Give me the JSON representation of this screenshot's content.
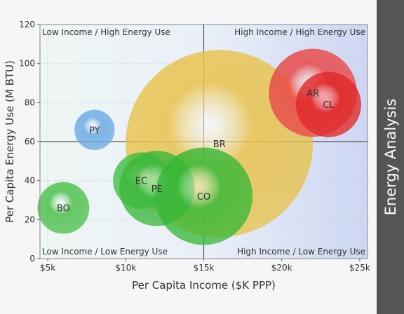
{
  "sidebar": {
    "title": "Energy Analysis"
  },
  "chart_data": {
    "type": "bubble",
    "xlabel": "Per Capita Income ($K PPP)",
    "ylabel": "Per Capita Energy Use (M BTU)",
    "xlim": [
      4.5,
      25.5
    ],
    "ylim": [
      0,
      120
    ],
    "x_ticks": [
      5,
      10,
      15,
      20,
      25
    ],
    "x_tick_labels": [
      "$5k",
      "$10k",
      "$15k",
      "$20k",
      "$25k"
    ],
    "y_ticks": [
      0,
      20,
      40,
      60,
      80,
      100,
      120
    ],
    "y_tick_labels": [
      "0",
      "20",
      "40",
      "60",
      "80",
      "100",
      "120"
    ],
    "grid": true,
    "quadrant_divider": {
      "x": 15,
      "y": 60
    },
    "quadrant_labels": {
      "top_left": "Low Income / High Energy Use",
      "top_right": "High Income / High Energy Use",
      "bottom_left": "Low Income / Low Energy Use",
      "bottom_right": "High Income / Low Energy Use"
    },
    "bubbles": [
      {
        "label": "BR",
        "x": 16,
        "y": 59,
        "size": 100,
        "color": "#e8c24a"
      },
      {
        "label": "AR",
        "x": 22,
        "y": 85,
        "size": 22,
        "color": "#e84848"
      },
      {
        "label": "CL",
        "x": 23,
        "y": 79,
        "size": 12,
        "color": "#e02828"
      },
      {
        "label": "PY",
        "x": 8,
        "y": 66,
        "size": 4.5,
        "color": "#6aaae6"
      },
      {
        "label": "BO",
        "x": 6,
        "y": 26,
        "size": 7.5,
        "color": "#4cc04c"
      },
      {
        "label": "EC",
        "x": 11,
        "y": 40,
        "size": 9,
        "color": "#44c044"
      },
      {
        "label": "PE",
        "x": 12,
        "y": 36,
        "size": 16,
        "color": "#3cb83c"
      },
      {
        "label": "CO",
        "x": 15,
        "y": 32,
        "size": 27,
        "color": "#38b838"
      }
    ]
  }
}
